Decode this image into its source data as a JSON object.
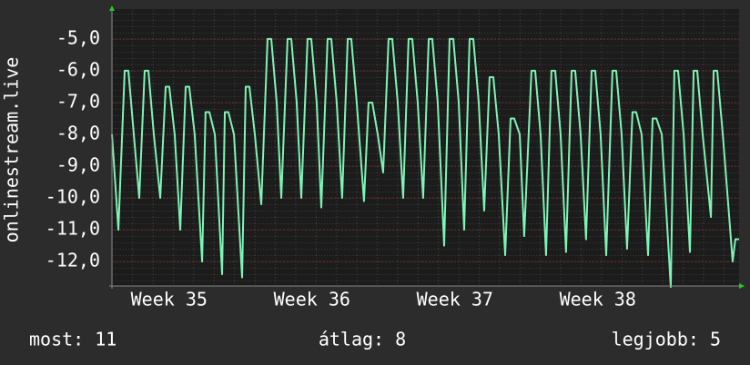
{
  "chart_data": {
    "type": "line",
    "y_label": "onlinestream.live",
    "color": "#7ff3b5",
    "grid": true,
    "xlim": [
      35.1,
      39.489
    ],
    "xticks": [
      {
        "value": 35.5,
        "label": "Week 35"
      },
      {
        "value": 36.5,
        "label": "Week 36"
      },
      {
        "value": 37.5,
        "label": "Week 37"
      },
      {
        "value": 38.5,
        "label": "Week 38"
      }
    ],
    "ylim": [
      -12.77,
      -4.06
    ],
    "yticks": [
      {
        "value": -5,
        "label": "-5,0"
      },
      {
        "value": -6,
        "label": "-6,0"
      },
      {
        "value": -7,
        "label": "-7,0"
      },
      {
        "value": -8,
        "label": "-8,0"
      },
      {
        "value": -9,
        "label": "-9,0"
      },
      {
        "value": -10,
        "label": "-10,0"
      },
      {
        "value": -11,
        "label": "-11,0"
      },
      {
        "value": -12,
        "label": "-12,0"
      }
    ],
    "x": [
      35.1,
      35.145,
      35.189,
      35.215,
      35.253,
      35.291,
      35.329,
      35.355,
      35.393,
      35.438,
      35.476,
      35.501,
      35.539,
      35.578,
      35.616,
      35.641,
      35.679,
      35.731,
      35.755,
      35.782,
      35.82,
      35.871,
      35.89,
      35.915,
      35.954,
      36.011,
      36.036,
      36.062,
      36.1,
      36.145,
      36.189,
      36.215,
      36.253,
      36.285,
      36.329,
      36.355,
      36.393,
      36.425,
      36.469,
      36.495,
      36.533,
      36.565,
      36.609,
      36.635,
      36.673,
      36.711,
      36.75,
      36.775,
      36.813,
      36.864,
      36.896,
      36.922,
      36.96,
      36.998,
      37.036,
      37.062,
      37.1,
      37.138,
      37.176,
      37.202,
      37.24,
      37.278,
      37.317,
      37.342,
      37.38,
      37.425,
      37.463,
      37.489,
      37.527,
      37.565,
      37.603,
      37.629,
      37.667,
      37.705,
      37.743,
      37.769,
      37.807,
      37.852,
      37.89,
      37.915,
      37.954,
      37.985,
      38.036,
      38.062,
      38.1,
      38.138,
      38.176,
      38.202,
      38.24,
      38.278,
      38.317,
      38.342,
      38.38,
      38.418,
      38.457,
      38.482,
      38.52,
      38.559,
      38.603,
      38.629,
      38.667,
      38.705,
      38.743,
      38.769,
      38.807,
      38.852,
      38.884,
      38.91,
      38.948,
      39.011,
      39.036,
      39.062,
      39.101,
      39.145,
      39.171,
      39.196,
      39.234,
      39.292,
      39.311,
      39.336,
      39.375,
      39.444,
      39.463,
      39.489
    ],
    "values": [
      -8,
      -11,
      -6,
      -6,
      -8,
      -10,
      -6,
      -6,
      -8,
      -10,
      -6.5,
      -6.5,
      -8,
      -11,
      -6.5,
      -6.5,
      -8,
      -12,
      -7.3,
      -7.3,
      -8,
      -12.4,
      -7.3,
      -7.3,
      -8,
      -12.5,
      -6.5,
      -6.5,
      -8,
      -10.2,
      -5,
      -5,
      -7,
      -10,
      -5,
      -5,
      -7,
      -10,
      -5,
      -5,
      -7,
      -10.3,
      -5,
      -5,
      -7,
      -10,
      -5,
      -5,
      -7,
      -10.1,
      -7,
      -7,
      -8,
      -9.2,
      -5,
      -5,
      -7,
      -10,
      -5,
      -5,
      -7,
      -10,
      -5,
      -5,
      -7,
      -11.5,
      -5,
      -5,
      -7,
      -11,
      -5,
      -5,
      -7,
      -10.4,
      -6.2,
      -6.2,
      -8,
      -11.8,
      -7.5,
      -7.5,
      -8,
      -11.2,
      -6,
      -6,
      -8,
      -11.8,
      -6,
      -6,
      -8,
      -11.7,
      -6,
      -6,
      -8,
      -11.3,
      -6,
      -6,
      -8,
      -11.8,
      -6,
      -6,
      -8,
      -11.6,
      -7.3,
      -7.3,
      -8,
      -11.8,
      -7.5,
      -7.5,
      -8,
      -12.8,
      -6,
      -6,
      -8,
      -11.7,
      -6,
      -6,
      -8,
      -10.6,
      -6,
      -6,
      -8,
      -12,
      -11.3,
      -11.3
    ],
    "stats": [
      "most: 11",
      "átlag: 8",
      "legjobb: 5"
    ]
  }
}
